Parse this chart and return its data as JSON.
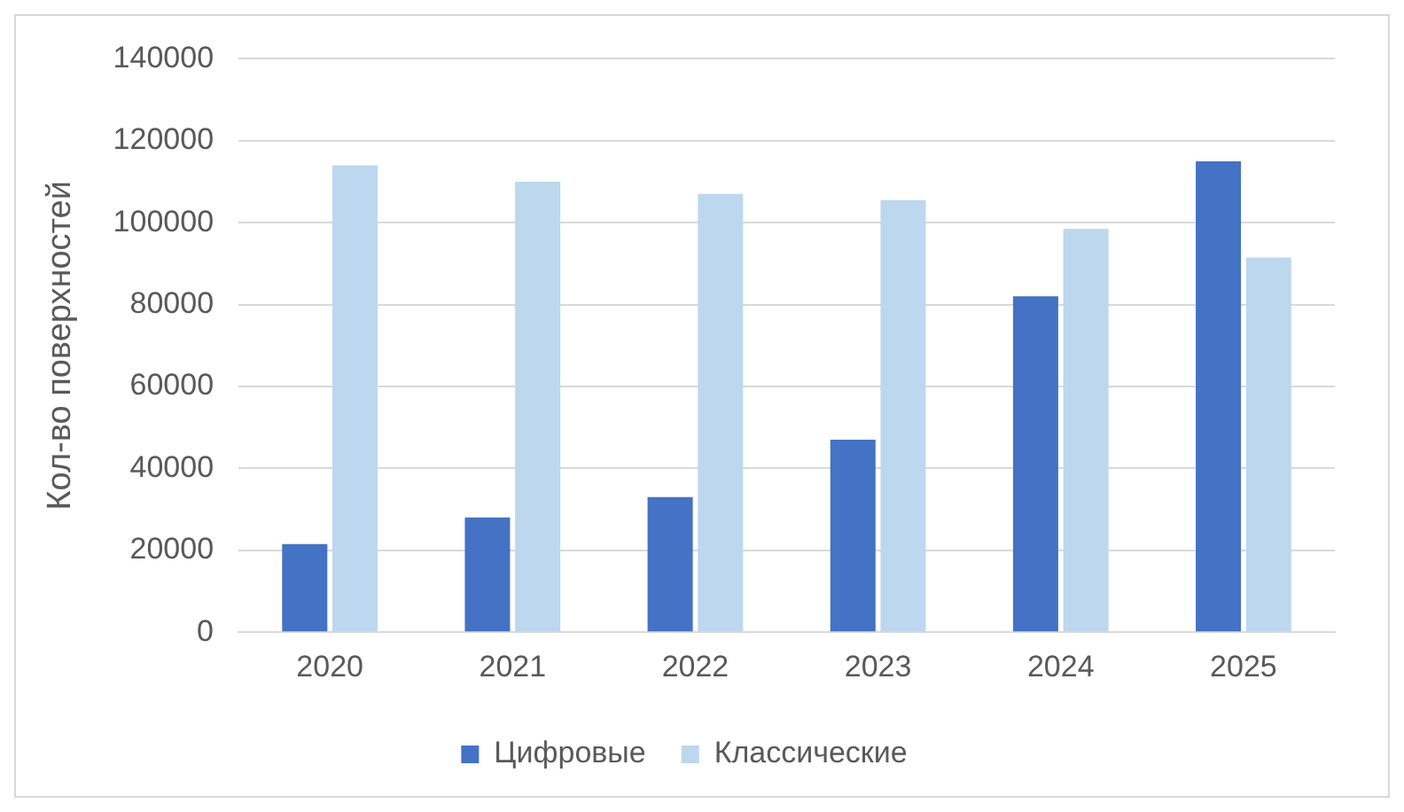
{
  "chart_data": {
    "type": "bar",
    "ylabel": "Кол-во поверхностей",
    "categories": [
      "2020",
      "2021",
      "2022",
      "2023",
      "2024",
      "2025"
    ],
    "series": [
      {
        "name": "Цифровые",
        "color": "#4472c4",
        "values": [
          21500,
          28000,
          33000,
          47000,
          82000,
          115000
        ]
      },
      {
        "name": "Классические",
        "color": "#bdd7ee",
        "values": [
          114000,
          110000,
          107000,
          105500,
          98500,
          91500
        ]
      }
    ],
    "ylim": [
      0,
      140000
    ],
    "yticks": [
      0,
      20000,
      40000,
      60000,
      80000,
      100000,
      120000,
      140000
    ],
    "grid": "y",
    "legend": "bottom"
  }
}
